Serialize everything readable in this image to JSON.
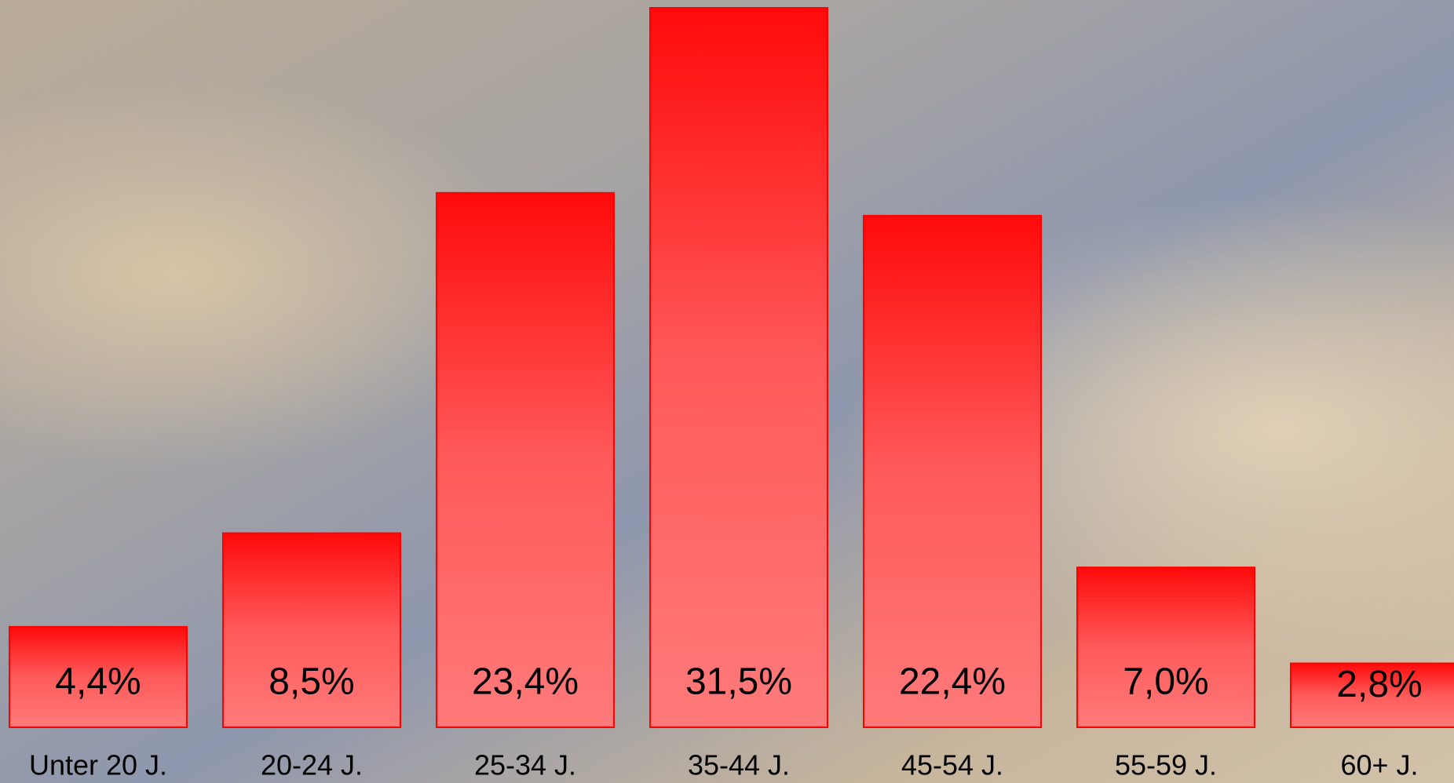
{
  "chart_data": {
    "type": "bar",
    "categories": [
      "Unter 20 J.",
      "20-24 J.",
      "25-34 J.",
      "35-44 J.",
      "45-54 J.",
      "55-59 J.",
      "60+ J."
    ],
    "values": [
      4.4,
      8.5,
      23.4,
      31.5,
      22.4,
      7.0,
      2.8
    ],
    "value_labels": [
      "4,4%",
      "8,5%",
      "23,4%",
      "31,5%",
      "22,4%",
      "7,0%",
      "2,8%"
    ],
    "color": "#ff0000"
  }
}
